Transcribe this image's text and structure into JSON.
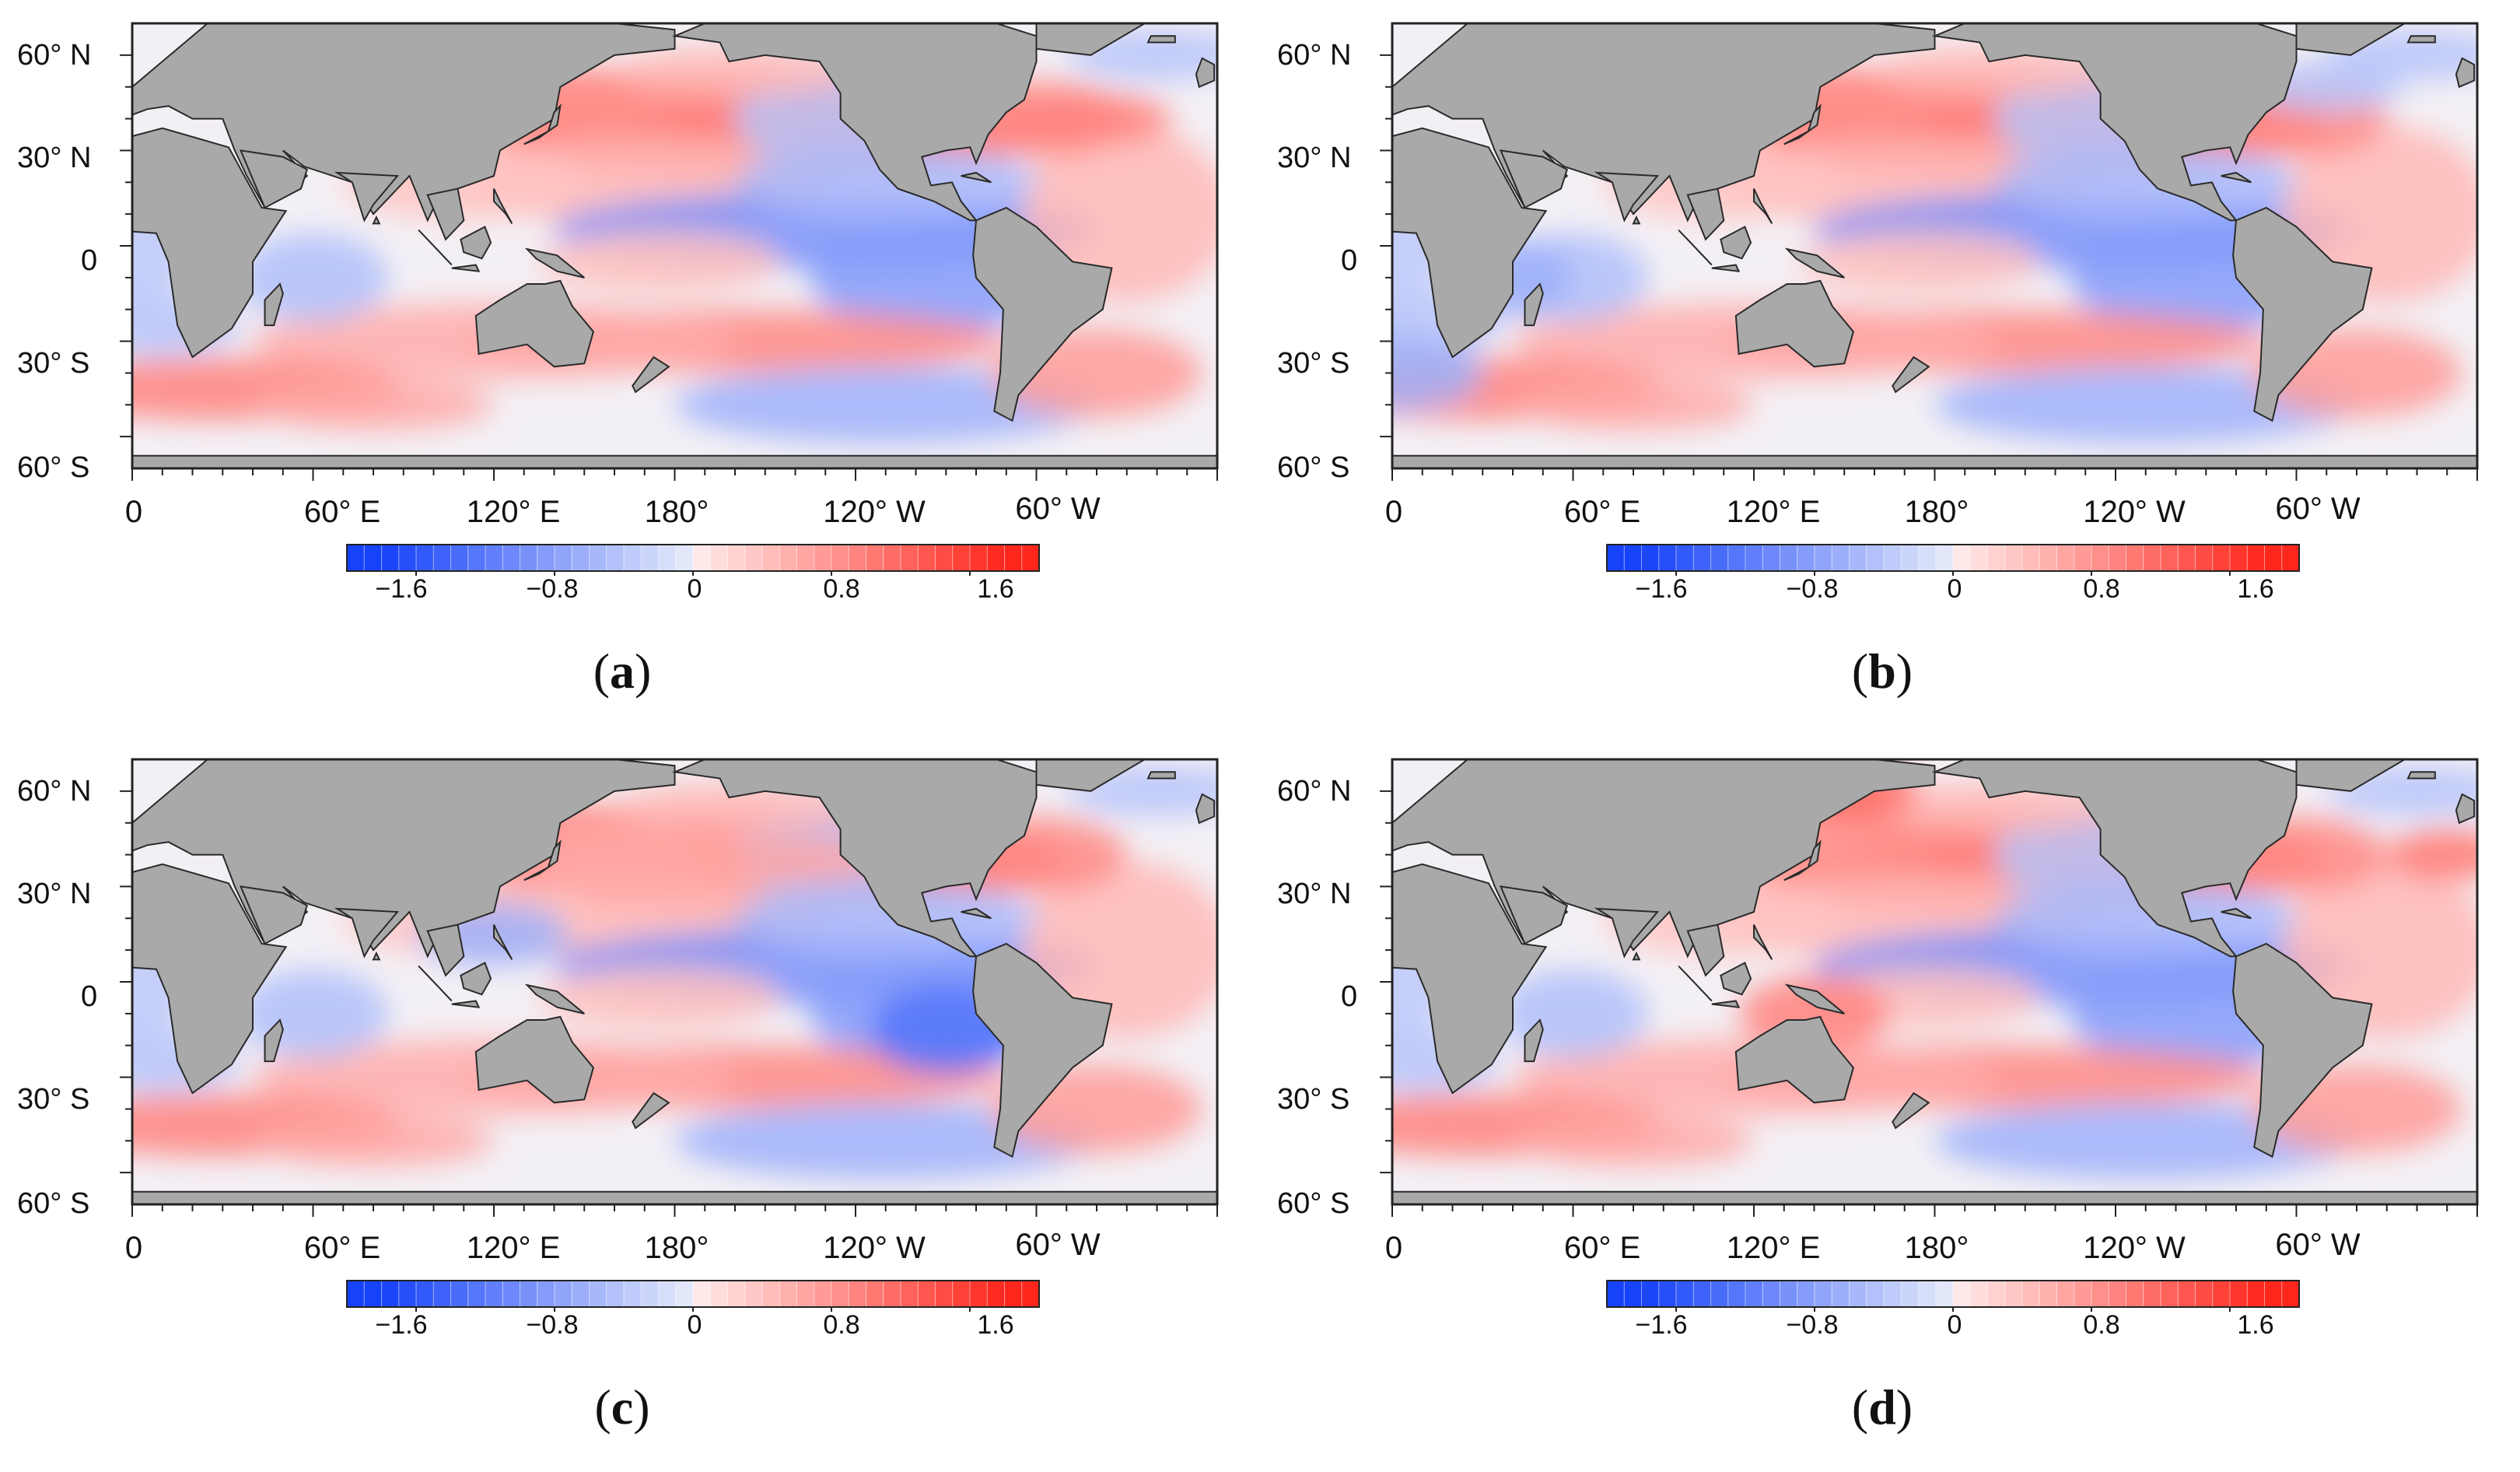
{
  "figure": {
    "y_axis_labels": [
      "60° N",
      "30° N",
      "0",
      "30° S",
      "60° S"
    ],
    "x_axis_labels": [
      "0",
      "60° E",
      "120° E",
      "180°",
      "120° W",
      "60° W"
    ],
    "colorbar": {
      "labels": [
        "−1.6",
        "−0.8",
        "0",
        "0.8",
        "1.6"
      ],
      "range": [
        -2.0,
        2.0
      ],
      "negative_color": "#1a44f0",
      "positive_color": "#f00a1e",
      "land_color": "#a9a9a9"
    }
  },
  "panels": [
    {
      "id": "a",
      "label_open": "(",
      "letter": "a",
      "label_close": ")"
    },
    {
      "id": "b",
      "label_open": "(",
      "letter": "b",
      "label_close": ")"
    },
    {
      "id": "c",
      "label_open": "(",
      "letter": "c",
      "label_close": ")"
    },
    {
      "id": "d",
      "label_open": "(",
      "letter": "d",
      "label_close": ")"
    }
  ]
}
